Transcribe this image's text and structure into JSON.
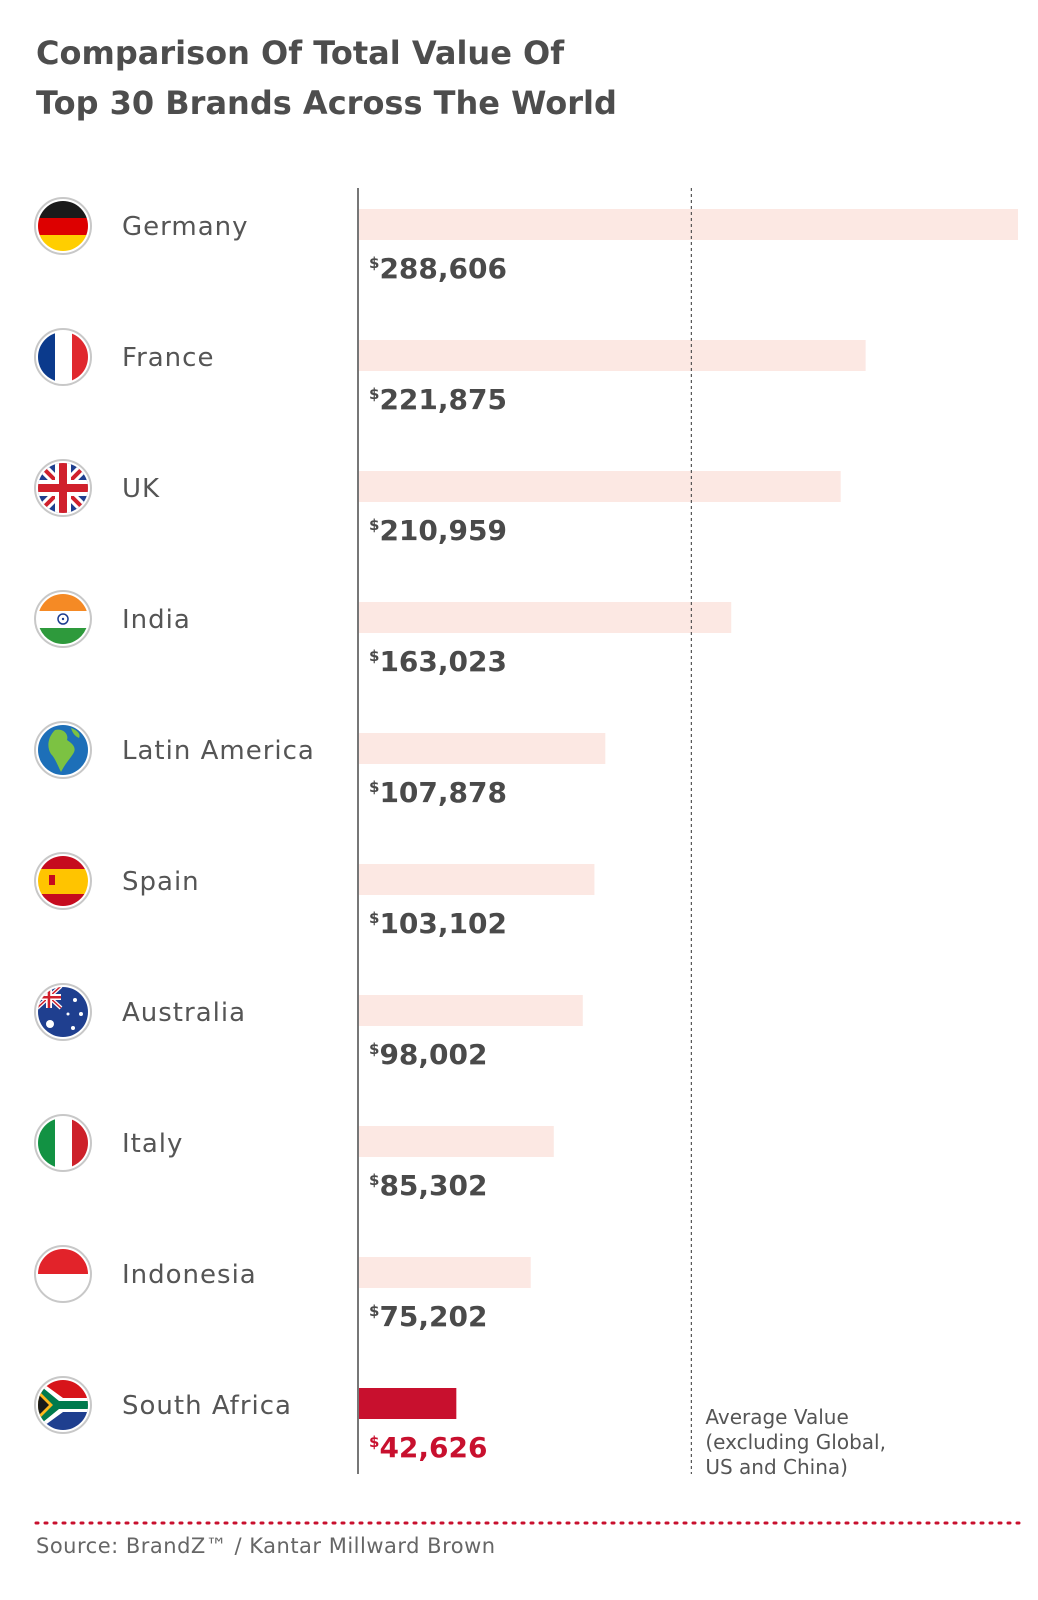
{
  "title": {
    "line1": "Comparison Of Total Value Of",
    "line2": "Top 30 Brands Across The World"
  },
  "source": "Source: BrandZ™ / Kantar Millward Brown",
  "colors": {
    "bar": "#fce8e3",
    "highlight_bar": "#c8102e",
    "text": "#4d4d4d",
    "source_line": "#c8102e"
  },
  "chart_data": {
    "type": "bar",
    "orientation": "horizontal",
    "currency_symbol": "$",
    "categories": [
      "Germany",
      "France",
      "UK",
      "India",
      "Latin America",
      "Spain",
      "Australia",
      "Italy",
      "Indonesia",
      "South Africa"
    ],
    "values": [
      288606,
      221875,
      210959,
      163023,
      107878,
      103102,
      98002,
      85302,
      75202,
      42626
    ],
    "value_labels": [
      "288,606",
      "221,875",
      "210,959",
      "163,023",
      "107,878",
      "103,102",
      "98,002",
      "85,302",
      "75,202",
      "42,626"
    ],
    "flag_icons": [
      "germany-flag-icon",
      "france-flag-icon",
      "uk-flag-icon",
      "india-flag-icon",
      "latin-america-globe-icon",
      "spain-flag-icon",
      "australia-flag-icon",
      "italy-flag-icon",
      "indonesia-flag-icon",
      "south-africa-flag-icon"
    ],
    "highlight": "South Africa",
    "xlim": [
      0,
      288606
    ],
    "reference_line": {
      "value": 146000,
      "label_lines": [
        "Average Value",
        "(excluding Global,",
        "US and China)"
      ]
    },
    "grid": false,
    "legend": "none"
  }
}
